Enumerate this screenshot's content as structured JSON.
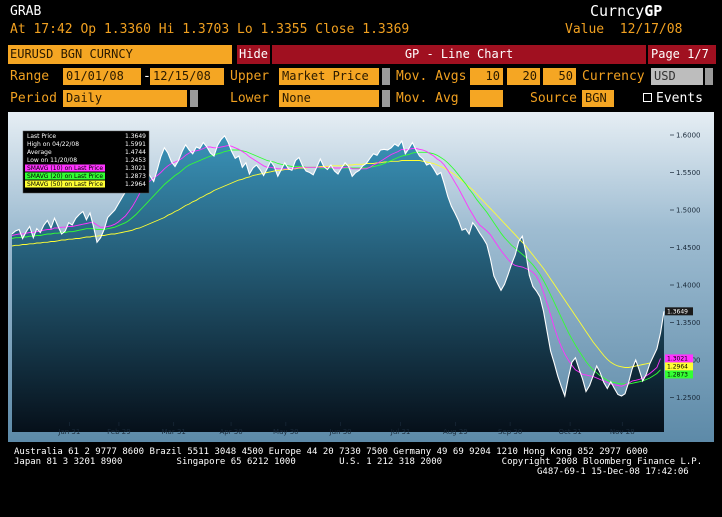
{
  "header": {
    "grab": "GRAB",
    "brand_prefix": "Curncy",
    "brand_suffix": "GP",
    "at_label": "At",
    "at_value": "17:42",
    "op_label": "Op",
    "op_value": "1.3360",
    "hi_label": "Hi",
    "hi_value": "1.3703",
    "lo_label": "Lo",
    "lo_value": "1.3355",
    "close_label": "Close",
    "close_value": "1.3369",
    "value_label": "Value",
    "value_date": "12/17/08"
  },
  "titlebar": {
    "security": "EURUSD BGN CURNCY",
    "hide_button": "Hide",
    "chart_title": "GP - Line Chart",
    "page": "Page 1/7"
  },
  "controls": {
    "range_label": "Range",
    "range_start": "01/01/08",
    "range_sep": "-",
    "range_end": "12/15/08",
    "upper_label": "Upper",
    "upper_value": "Market Price",
    "mov_avgs_label": "Mov. Avgs",
    "ma1": "10",
    "ma2": "20",
    "ma3": "50",
    "currency_label": "Currency",
    "currency_value": "USD",
    "period_label": "Period",
    "period_value": "Daily",
    "lower_label": "Lower",
    "lower_value": "None",
    "mov_avg_label": "Mov. Avg",
    "mov_avg_value": "",
    "source_label": "Source",
    "source_value": "BGN",
    "events_label": "Events"
  },
  "colors": {
    "accent_orange": "#f5a623",
    "title_red": "#a01020",
    "price_line": "#ffffff",
    "ma10": "#ff33ff",
    "ma20": "#33ff33",
    "ma50": "#ffff33"
  },
  "chart_data": {
    "type": "line",
    "ylim": [
      1.22,
      1.62
    ],
    "yticks": [
      "1.6000",
      "1.5500",
      "1.5000",
      "1.4500",
      "1.4000",
      "1.3500",
      "1.3000",
      "1.2500"
    ],
    "ytick_values": [
      1.6,
      1.55,
      1.5,
      1.45,
      1.4,
      1.35,
      1.3,
      1.25
    ],
    "xticks": [
      "Jan 31",
      "Feb 29",
      "Mar 31",
      "Apr 30",
      "May 30",
      "Jun 30",
      "Jul 31",
      "Aug 29",
      "Sep 30",
      "Oct 31",
      "Nov 28"
    ],
    "legend": [
      {
        "label": "Last Price",
        "value": "1.3649"
      },
      {
        "label": "High on 04/22/08",
        "value": "1.5991"
      },
      {
        "label": "Average",
        "value": "1.4744"
      },
      {
        "label": "Low on 11/20/08",
        "value": "1.2453"
      },
      {
        "label": "SMAVG (10) on Last Price (1)",
        "value": "1.3021"
      },
      {
        "label": "SMAVG (20) on Last Price (1)",
        "value": "1.2873"
      },
      {
        "label": "SMAVG (50) on Last Price (1)",
        "value": "1.2964"
      }
    ],
    "right_labels": [
      {
        "text": "1.3649",
        "value": 1.3649
      },
      {
        "text": "1.3021",
        "value": 1.3021
      },
      {
        "text": "1.2964",
        "value": 1.2964
      },
      {
        "text": "1.2873",
        "value": 1.2873
      }
    ],
    "series": [
      {
        "name": "Last Price",
        "color": "#ffffff",
        "values": [
          1.468,
          1.472,
          1.474,
          1.462,
          1.471,
          1.478,
          1.463,
          1.475,
          1.47,
          1.48,
          1.486,
          1.476,
          1.489,
          1.478,
          1.468,
          1.472,
          1.483,
          1.48,
          1.489,
          1.494,
          1.498,
          1.487,
          1.496,
          1.478,
          1.457,
          1.463,
          1.474,
          1.49,
          1.495,
          1.5,
          1.508,
          1.516,
          1.524,
          1.532,
          1.543,
          1.553,
          1.566,
          1.558,
          1.553,
          1.545,
          1.538,
          1.554,
          1.571,
          1.583,
          1.576,
          1.564,
          1.558,
          1.566,
          1.578,
          1.587,
          1.58,
          1.575,
          1.584,
          1.582,
          1.59,
          1.584,
          1.576,
          1.572,
          1.586,
          1.594,
          1.599,
          1.59,
          1.578,
          1.569,
          1.572,
          1.557,
          1.563,
          1.548,
          1.556,
          1.56,
          1.554,
          1.546,
          1.555,
          1.565,
          1.558,
          1.545,
          1.554,
          1.563,
          1.555,
          1.553,
          1.566,
          1.57,
          1.559,
          1.552,
          1.55,
          1.547,
          1.557,
          1.568,
          1.558,
          1.554,
          1.56,
          1.552,
          1.548,
          1.556,
          1.563,
          1.558,
          1.545,
          1.55,
          1.553,
          1.559,
          1.562,
          1.569,
          1.575,
          1.573,
          1.58,
          1.581,
          1.58,
          1.583,
          1.588,
          1.585,
          1.592,
          1.575,
          1.582,
          1.59,
          1.58,
          1.572,
          1.568,
          1.56,
          1.562,
          1.555,
          1.547,
          1.55,
          1.535,
          1.518,
          1.505,
          1.496,
          1.486,
          1.473,
          1.475,
          1.468,
          1.483,
          1.477,
          1.469,
          1.462,
          1.454,
          1.435,
          1.412,
          1.402,
          1.393,
          1.401,
          1.414,
          1.428,
          1.44,
          1.458,
          1.465,
          1.443,
          1.413,
          1.398,
          1.392,
          1.384,
          1.365,
          1.338,
          1.312,
          1.296,
          1.279,
          1.265,
          1.252,
          1.276,
          1.297,
          1.303,
          1.288,
          1.275,
          1.258,
          1.266,
          1.279,
          1.292,
          1.283,
          1.27,
          1.262,
          1.271,
          1.262,
          1.254,
          1.252,
          1.255,
          1.27,
          1.288,
          1.3,
          1.287,
          1.272,
          1.281,
          1.295,
          1.305,
          1.315,
          1.336,
          1.365
        ]
      },
      {
        "name": "SMAVG (10) on Last Price (1)",
        "color": "#ff33ff",
        "values": [
          1.466,
          1.467,
          1.468,
          1.468,
          1.469,
          1.47,
          1.47,
          1.471,
          1.472,
          1.473,
          1.474,
          1.474,
          1.476,
          1.476,
          1.477,
          1.477,
          1.478,
          1.478,
          1.479,
          1.48,
          1.481,
          1.482,
          1.483,
          1.483,
          1.48,
          1.477,
          1.477,
          1.478,
          1.479,
          1.481,
          1.484,
          1.488,
          1.492,
          1.498,
          1.505,
          1.513,
          1.522,
          1.529,
          1.535,
          1.539,
          1.543,
          1.546,
          1.55,
          1.555,
          1.559,
          1.562,
          1.564,
          1.566,
          1.569,
          1.573,
          1.576,
          1.578,
          1.579,
          1.58,
          1.582,
          1.584,
          1.584,
          1.583,
          1.583,
          1.584,
          1.585,
          1.586,
          1.585,
          1.583,
          1.581,
          1.578,
          1.575,
          1.571,
          1.568,
          1.565,
          1.562,
          1.559,
          1.557,
          1.557,
          1.556,
          1.555,
          1.555,
          1.555,
          1.555,
          1.555,
          1.556,
          1.557,
          1.557,
          1.557,
          1.557,
          1.557,
          1.557,
          1.557,
          1.557,
          1.557,
          1.557,
          1.556,
          1.556,
          1.556,
          1.557,
          1.557,
          1.555,
          1.555,
          1.555,
          1.555,
          1.555,
          1.557,
          1.56,
          1.562,
          1.565,
          1.568,
          1.571,
          1.574,
          1.576,
          1.578,
          1.581,
          1.58,
          1.581,
          1.582,
          1.582,
          1.581,
          1.58,
          1.578,
          1.575,
          1.572,
          1.568,
          1.565,
          1.56,
          1.553,
          1.545,
          1.537,
          1.529,
          1.52,
          1.511,
          1.502,
          1.494,
          1.486,
          1.48,
          1.476,
          1.472,
          1.467,
          1.46,
          1.453,
          1.446,
          1.44,
          1.434,
          1.429,
          1.426,
          1.425,
          1.424,
          1.422,
          1.42,
          1.417,
          1.412,
          1.403,
          1.39,
          1.375,
          1.36,
          1.344,
          1.33,
          1.318,
          1.308,
          1.3,
          1.293,
          1.287,
          1.284,
          1.281,
          1.28,
          1.279,
          1.278,
          1.276,
          1.274,
          1.272,
          1.27,
          1.268,
          1.267,
          1.266,
          1.265,
          1.267,
          1.269,
          1.272,
          1.273,
          1.274,
          1.276,
          1.279,
          1.282,
          1.286,
          1.29,
          1.302
        ]
      },
      {
        "name": "SMAVG (20) on Last Price (1)",
        "color": "#33ff33",
        "values": [
          1.462,
          1.463,
          1.463,
          1.464,
          1.464,
          1.465,
          1.465,
          1.466,
          1.466,
          1.467,
          1.468,
          1.468,
          1.469,
          1.469,
          1.47,
          1.47,
          1.471,
          1.471,
          1.472,
          1.473,
          1.474,
          1.475,
          1.475,
          1.475,
          1.474,
          1.474,
          1.474,
          1.475,
          1.476,
          1.477,
          1.479,
          1.481,
          1.483,
          1.486,
          1.49,
          1.494,
          1.499,
          1.504,
          1.509,
          1.514,
          1.519,
          1.524,
          1.529,
          1.534,
          1.538,
          1.542,
          1.546,
          1.549,
          1.553,
          1.557,
          1.56,
          1.562,
          1.564,
          1.566,
          1.568,
          1.57,
          1.572,
          1.573,
          1.575,
          1.576,
          1.578,
          1.579,
          1.58,
          1.58,
          1.58,
          1.579,
          1.578,
          1.576,
          1.574,
          1.572,
          1.57,
          1.568,
          1.566,
          1.565,
          1.564,
          1.562,
          1.561,
          1.56,
          1.559,
          1.558,
          1.558,
          1.558,
          1.558,
          1.557,
          1.557,
          1.557,
          1.557,
          1.556,
          1.556,
          1.556,
          1.556,
          1.556,
          1.556,
          1.556,
          1.556,
          1.556,
          1.556,
          1.556,
          1.556,
          1.556,
          1.556,
          1.557,
          1.558,
          1.559,
          1.56,
          1.562,
          1.564,
          1.566,
          1.568,
          1.57,
          1.572,
          1.573,
          1.574,
          1.576,
          1.577,
          1.577,
          1.577,
          1.577,
          1.576,
          1.575,
          1.573,
          1.57,
          1.567,
          1.563,
          1.558,
          1.553,
          1.547,
          1.541,
          1.535,
          1.528,
          1.522,
          1.515,
          1.509,
          1.503,
          1.497,
          1.49,
          1.483,
          1.476,
          1.469,
          1.463,
          1.458,
          1.453,
          1.449,
          1.445,
          1.441,
          1.437,
          1.432,
          1.427,
          1.421,
          1.414,
          1.406,
          1.397,
          1.387,
          1.377,
          1.367,
          1.357,
          1.347,
          1.337,
          1.328,
          1.32,
          1.312,
          1.305,
          1.298,
          1.292,
          1.287,
          1.283,
          1.279,
          1.276,
          1.273,
          1.271,
          1.27,
          1.269,
          1.268,
          1.268,
          1.268,
          1.269,
          1.27,
          1.271,
          1.272,
          1.274,
          1.276,
          1.279,
          1.282,
          1.287
        ]
      },
      {
        "name": "SMAVG (50) on Last Price (1)",
        "color": "#ffff33",
        "values": [
          1.452,
          1.453,
          1.453,
          1.454,
          1.454,
          1.455,
          1.455,
          1.456,
          1.456,
          1.457,
          1.457,
          1.458,
          1.458,
          1.459,
          1.46,
          1.46,
          1.461,
          1.461,
          1.462,
          1.462,
          1.463,
          1.464,
          1.464,
          1.465,
          1.465,
          1.466,
          1.466,
          1.467,
          1.468,
          1.468,
          1.469,
          1.47,
          1.471,
          1.472,
          1.473,
          1.475,
          1.476,
          1.478,
          1.48,
          1.482,
          1.484,
          1.486,
          1.488,
          1.49,
          1.493,
          1.495,
          1.498,
          1.5,
          1.503,
          1.506,
          1.508,
          1.511,
          1.513,
          1.516,
          1.518,
          1.521,
          1.523,
          1.526,
          1.528,
          1.53,
          1.532,
          1.534,
          1.536,
          1.538,
          1.54,
          1.541,
          1.543,
          1.544,
          1.546,
          1.547,
          1.548,
          1.549,
          1.55,
          1.551,
          1.552,
          1.553,
          1.553,
          1.554,
          1.554,
          1.555,
          1.555,
          1.556,
          1.556,
          1.556,
          1.557,
          1.557,
          1.557,
          1.558,
          1.558,
          1.558,
          1.559,
          1.559,
          1.559,
          1.559,
          1.56,
          1.56,
          1.56,
          1.561,
          1.561,
          1.561,
          1.562,
          1.562,
          1.562,
          1.563,
          1.563,
          1.564,
          1.564,
          1.565,
          1.565,
          1.565,
          1.566,
          1.566,
          1.566,
          1.566,
          1.566,
          1.566,
          1.565,
          1.564,
          1.563,
          1.562,
          1.56,
          1.558,
          1.556,
          1.553,
          1.55,
          1.547,
          1.543,
          1.539,
          1.535,
          1.531,
          1.527,
          1.522,
          1.517,
          1.512,
          1.507,
          1.502,
          1.497,
          1.492,
          1.487,
          1.482,
          1.477,
          1.472,
          1.467,
          1.462,
          1.457,
          1.452,
          1.446,
          1.44,
          1.434,
          1.428,
          1.422,
          1.415,
          1.408,
          1.401,
          1.394,
          1.387,
          1.38,
          1.373,
          1.366,
          1.359,
          1.352,
          1.345,
          1.338,
          1.331,
          1.324,
          1.318,
          1.312,
          1.306,
          1.301,
          1.297,
          1.294,
          1.292,
          1.291,
          1.29,
          1.29,
          1.291,
          1.292,
          1.293,
          1.294,
          1.295,
          1.296
        ]
      }
    ]
  },
  "footer": {
    "line1": "Australia 61 2 9777 8600 Brazil 5511 3048 4500 Europe 44 20 7330 7500 Germany 49 69 9204 1210 Hong Kong 852 2977 6000",
    "line2": "Japan 81 3 3201 8900          Singapore 65 6212 1000        U.S. 1 212 318 2000           Copyright 2008 Bloomberg Finance L.P.",
    "line3": "G487-69-1 15-Dec-08 17:42:06"
  }
}
